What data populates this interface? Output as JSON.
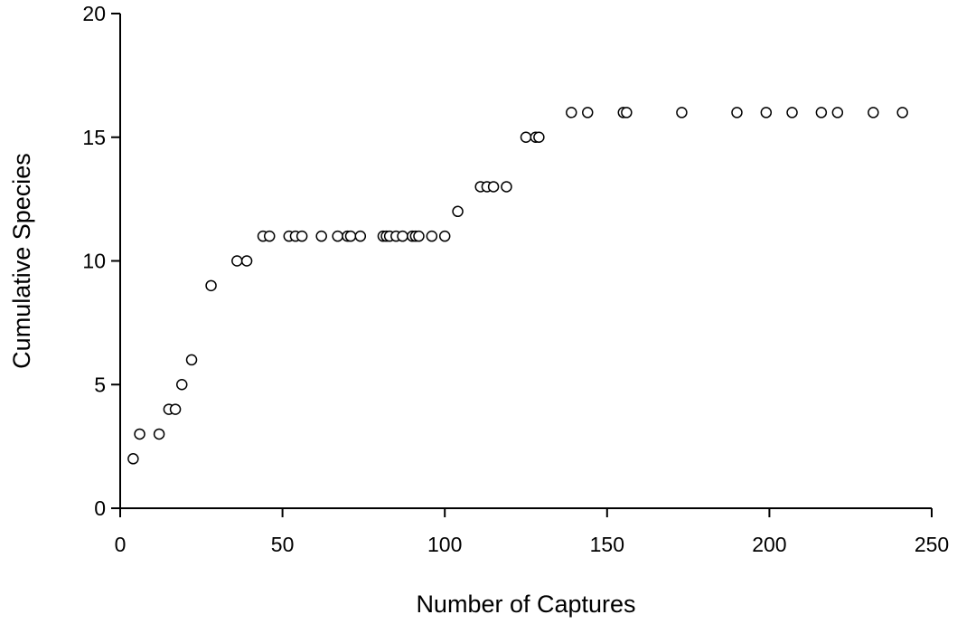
{
  "chart_data": {
    "type": "scatter",
    "title": "",
    "xlabel": "Number of Captures",
    "ylabel": "Cumulative Species",
    "xlim": [
      0,
      250
    ],
    "ylim": [
      0,
      20
    ],
    "xticks": [
      0,
      50,
      100,
      150,
      200,
      250
    ],
    "yticks": [
      0,
      5,
      10,
      15,
      20
    ],
    "x_tick_labels": [
      "0",
      "50",
      "100",
      "150",
      "200",
      "250"
    ],
    "y_tick_labels": [
      "0",
      "5",
      "10",
      "15",
      "20"
    ],
    "grid": false,
    "legend": "none",
    "marker": "open-circle",
    "colors": {
      "marker_stroke": "#000000",
      "marker_fill": "#ffffff",
      "axis": "#000000"
    },
    "series": [
      {
        "points": [
          [
            4,
            2
          ],
          [
            6,
            3
          ],
          [
            12,
            3
          ],
          [
            15,
            4
          ],
          [
            17,
            4
          ],
          [
            19,
            5
          ],
          [
            22,
            6
          ],
          [
            28,
            9
          ],
          [
            36,
            10
          ],
          [
            39,
            10
          ],
          [
            44,
            11
          ],
          [
            46,
            11
          ],
          [
            52,
            11
          ],
          [
            54,
            11
          ],
          [
            56,
            11
          ],
          [
            62,
            11
          ],
          [
            67,
            11
          ],
          [
            70,
            11
          ],
          [
            71,
            11
          ],
          [
            74,
            11
          ],
          [
            81,
            11
          ],
          [
            82,
            11
          ],
          [
            83,
            11
          ],
          [
            85,
            11
          ],
          [
            87,
            11
          ],
          [
            90,
            11
          ],
          [
            91,
            11
          ],
          [
            92,
            11
          ],
          [
            96,
            11
          ],
          [
            100,
            11
          ],
          [
            104,
            12
          ],
          [
            111,
            13
          ],
          [
            113,
            13
          ],
          [
            115,
            13
          ],
          [
            119,
            13
          ],
          [
            125,
            15
          ],
          [
            128,
            15
          ],
          [
            129,
            15
          ],
          [
            139,
            16
          ],
          [
            144,
            16
          ],
          [
            155,
            16
          ],
          [
            156,
            16
          ],
          [
            173,
            16
          ],
          [
            190,
            16
          ],
          [
            199,
            16
          ],
          [
            207,
            16
          ],
          [
            216,
            16
          ],
          [
            221,
            16
          ],
          [
            232,
            16
          ],
          [
            241,
            16
          ]
        ]
      }
    ]
  }
}
